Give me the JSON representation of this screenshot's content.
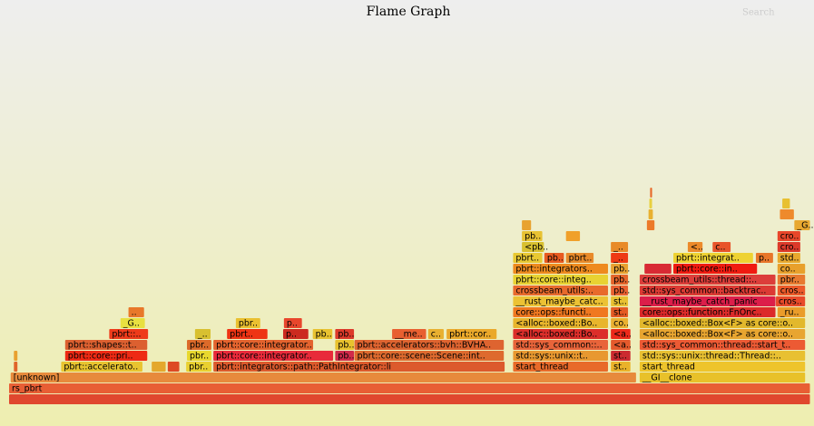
{
  "chart_data": {
    "type": "flame",
    "title": "Flame Graph",
    "search_label": "Search",
    "xlim": [
      0,
      100
    ],
    "frames": [
      {
        "name": null,
        "depth": 0,
        "start": 0,
        "width": 100,
        "color": "#e0472e"
      },
      {
        "name": "rs_pbrt",
        "depth": 1,
        "start": 0,
        "width": 100,
        "color": "#e85e34"
      },
      {
        "name": "[unknown]",
        "depth": 2,
        "start": 0.2,
        "width": 78.1,
        "color": "#e78a3c"
      },
      {
        "name": "__GI__clone",
        "depth": 2,
        "start": 78.7,
        "width": 20.7,
        "color": "#e8c12a"
      },
      {
        "name": "pbrt::accelerato..",
        "depth": 3,
        "start": 6.5,
        "width": 10.2,
        "color": "#e8c430"
      },
      {
        "name": "pbr..",
        "depth": 3,
        "start": 22.1,
        "width": 3.2,
        "color": "#e9d030"
      },
      {
        "name": "pbrt::integrators::path::PathIntegrator::li",
        "depth": 3,
        "start": 25.5,
        "width": 36.4,
        "color": "#dc5a2c"
      },
      {
        "name": "start_thread",
        "depth": 3,
        "start": 62.9,
        "width": 11.9,
        "color": "#e86a2a"
      },
      {
        "name": "st..",
        "depth": 3,
        "start": 75.1,
        "width": 2.5,
        "color": "#eab22a"
      },
      {
        "name": "start_thread",
        "depth": 3,
        "start": 78.7,
        "width": 20.7,
        "color": "#eec42c"
      },
      {
        "name": null,
        "depth": 3,
        "start": 0.6,
        "width": 0.5,
        "color": "#e0642a"
      },
      {
        "name": null,
        "depth": 3,
        "start": 17.8,
        "width": 1.8,
        "color": "#e4a82c"
      },
      {
        "name": null,
        "depth": 3,
        "start": 19.8,
        "width": 1.5,
        "color": "#dd4a24"
      },
      {
        "name": "pbrt::core::pri..",
        "depth": 4,
        "start": 7.0,
        "width": 10.3,
        "color": "#ee2a14"
      },
      {
        "name": "pbr..",
        "depth": 4,
        "start": 22.2,
        "width": 3.1,
        "color": "#e8d82e"
      },
      {
        "name": "pbrt::core::integrator..",
        "depth": 4,
        "start": 25.5,
        "width": 15.0,
        "color": "#e82a3a"
      },
      {
        "name": "pb..",
        "depth": 4,
        "start": 40.7,
        "width": 2.4,
        "color": "#d02a4a"
      },
      {
        "name": "pbrt::core::scene::Scene::int..",
        "depth": 4,
        "start": 43.1,
        "width": 18.7,
        "color": "#de6a2e"
      },
      {
        "name": "std::sys::unix::t..",
        "depth": 4,
        "start": 62.9,
        "width": 11.9,
        "color": "#e89830"
      },
      {
        "name": "st..",
        "depth": 4,
        "start": 75.1,
        "width": 2.5,
        "color": "#cc2a30"
      },
      {
        "name": "std::sys::unix::thread::Thread::..",
        "depth": 4,
        "start": 78.7,
        "width": 20.7,
        "color": "#e8c032"
      },
      {
        "name": null,
        "depth": 4,
        "start": 0.6,
        "width": 0.5,
        "color": "#e8a030"
      },
      {
        "name": "pbrt::shapes::t..",
        "depth": 5,
        "start": 7.0,
        "width": 10.3,
        "color": "#dc6030"
      },
      {
        "name": "pbr..",
        "depth": 5,
        "start": 22.2,
        "width": 3.1,
        "color": "#dc6a2a"
      },
      {
        "name": "pbrt::core::integrator..",
        "depth": 5,
        "start": 25.5,
        "width": 12.5,
        "color": "#e3632e"
      },
      {
        "name": "pb..",
        "depth": 5,
        "start": 40.7,
        "width": 2.4,
        "color": "#e8c22e"
      },
      {
        "name": "pbrt::accelerators::bvh::BVHA..",
        "depth": 5,
        "start": 43.1,
        "width": 18.7,
        "color": "#de6430"
      },
      {
        "name": "std::sys_common::..",
        "depth": 5,
        "start": 62.9,
        "width": 11.9,
        "color": "#e8643a"
      },
      {
        "name": "<a..",
        "depth": 5,
        "start": 75.1,
        "width": 2.5,
        "color": "#e45a2c"
      },
      {
        "name": "std::sys_common::thread::start_t..",
        "depth": 5,
        "start": 78.7,
        "width": 20.7,
        "color": "#ec5a34"
      },
      {
        "name": "pbrt::..",
        "depth": 6,
        "start": 12.5,
        "width": 4.9,
        "color": "#ee3a1a"
      },
      {
        "name": "_..",
        "depth": 6,
        "start": 23.2,
        "width": 2.0,
        "color": "#d8c030"
      },
      {
        "name": "pbrt..",
        "depth": 6,
        "start": 27.2,
        "width": 5.1,
        "color": "#ee3414"
      },
      {
        "name": "p..",
        "depth": 6,
        "start": 34.2,
        "width": 3.2,
        "color": "#cc2a20"
      },
      {
        "name": "pb..",
        "depth": 6,
        "start": 37.9,
        "width": 2.5,
        "color": "#e8c230"
      },
      {
        "name": "pb..",
        "depth": 6,
        "start": 40.7,
        "width": 2.4,
        "color": "#dd3a2a"
      },
      {
        "name": "__me..",
        "depth": 6,
        "start": 47.8,
        "width": 4.3,
        "color": "#e86030"
      },
      {
        "name": "c..",
        "depth": 6,
        "start": 52.3,
        "width": 2.0,
        "color": "#e8b030"
      },
      {
        "name": "pbrt::cor..",
        "depth": 6,
        "start": 54.6,
        "width": 6.3,
        "color": "#eaa82a"
      },
      {
        "name": "<alloc::boxed::Bo..",
        "depth": 6,
        "start": 62.9,
        "width": 11.9,
        "color": "#dc2e2a"
      },
      {
        "name": "<a..",
        "depth": 6,
        "start": 75.1,
        "width": 2.5,
        "color": "#ec2a1a"
      },
      {
        "name": "<alloc::boxed::Box<F> as core::o..",
        "depth": 6,
        "start": 78.7,
        "width": 20.7,
        "color": "#e8a530"
      },
      {
        "name": "_G..",
        "depth": 7,
        "start": 13.9,
        "width": 3.1,
        "color": "#e8e040"
      },
      {
        "name": "pbr..",
        "depth": 7,
        "start": 28.3,
        "width": 3.1,
        "color": "#eac030"
      },
      {
        "name": "p..",
        "depth": 7,
        "start": 34.3,
        "width": 2.3,
        "color": "#e8462c"
      },
      {
        "name": "<alloc::boxed::Bo..",
        "depth": 7,
        "start": 62.9,
        "width": 11.9,
        "color": "#e8b52c"
      },
      {
        "name": "co..",
        "depth": 7,
        "start": 75.1,
        "width": 2.2,
        "color": "#eab030"
      },
      {
        "name": "<alloc::boxed::Box<F> as core::o..",
        "depth": 7,
        "start": 78.7,
        "width": 20.7,
        "color": "#e2b82c"
      },
      {
        "name": "..",
        "depth": 8,
        "start": 14.9,
        "width": 2.0,
        "color": "#e8782a"
      },
      {
        "name": "core::ops::functi..",
        "depth": 8,
        "start": 62.9,
        "width": 11.9,
        "color": "#f07820"
      },
      {
        "name": "st..",
        "depth": 8,
        "start": 75.1,
        "width": 2.2,
        "color": "#e45a24"
      },
      {
        "name": "core::ops::function::FnOnc..",
        "depth": 8,
        "start": 78.7,
        "width": 17.0,
        "color": "#dc2a2a"
      },
      {
        "name": "_ru..",
        "depth": 8,
        "start": 95.9,
        "width": 3.5,
        "color": "#ea9c2a"
      },
      {
        "name": "__rust_maybe_catc..",
        "depth": 9,
        "start": 62.9,
        "width": 11.9,
        "color": "#ecc234"
      },
      {
        "name": "st..",
        "depth": 9,
        "start": 75.1,
        "width": 2.2,
        "color": "#e8c032"
      },
      {
        "name": "__rust_maybe_catch_panic",
        "depth": 9,
        "start": 78.7,
        "width": 17.0,
        "color": "#dc1e4a"
      },
      {
        "name": "cros..",
        "depth": 9,
        "start": 95.7,
        "width": 3.7,
        "color": "#e84a2a"
      },
      {
        "name": "crossbeam_utils:..",
        "depth": 10,
        "start": 62.9,
        "width": 11.9,
        "color": "#e86a2c"
      },
      {
        "name": "pb..",
        "depth": 10,
        "start": 75.1,
        "width": 2.2,
        "color": "#e86030"
      },
      {
        "name": "std::sys_common::backtrac..",
        "depth": 10,
        "start": 78.7,
        "width": 17.0,
        "color": "#dc3a34"
      },
      {
        "name": "cros..",
        "depth": 10,
        "start": 95.9,
        "width": 3.5,
        "color": "#ec5a2a"
      },
      {
        "name": "pbrt::core::integ..",
        "depth": 11,
        "start": 62.9,
        "width": 11.9,
        "color": "#e8d232"
      },
      {
        "name": "pb..",
        "depth": 11,
        "start": 75.1,
        "width": 2.2,
        "color": "#e4642a"
      },
      {
        "name": "crossbeam_utils::thread::..",
        "depth": 11,
        "start": 78.7,
        "width": 17.0,
        "color": "#dc3e3a"
      },
      {
        "name": "pbr..",
        "depth": 11,
        "start": 95.9,
        "width": 3.5,
        "color": "#e87a30"
      },
      {
        "name": "pbrt::integrators..",
        "depth": 12,
        "start": 62.9,
        "width": 11.9,
        "color": "#ee8a1e"
      },
      {
        "name": "pb..",
        "depth": 12,
        "start": 75.1,
        "width": 2.2,
        "color": "#e8a030"
      },
      {
        "name": null,
        "depth": 12,
        "start": 79.3,
        "width": 3.4,
        "color": "#d82a34"
      },
      {
        "name": "pbrt::core::in..",
        "depth": 12,
        "start": 82.9,
        "width": 10.5,
        "color": "#f01a10"
      },
      {
        "name": "co..",
        "depth": 12,
        "start": 95.9,
        "width": 3.5,
        "color": "#e8a02c"
      },
      {
        "name": "pbrt..",
        "depth": 13,
        "start": 62.9,
        "width": 3.7,
        "color": "#e8c832"
      },
      {
        "name": "pb..",
        "depth": 13,
        "start": 66.8,
        "width": 2.5,
        "color": "#e85a20"
      },
      {
        "name": "pbrt..",
        "depth": 13,
        "start": 69.5,
        "width": 3.5,
        "color": "#e88a2a"
      },
      {
        "name": "_..",
        "depth": 13,
        "start": 75.1,
        "width": 2.2,
        "color": "#ee3a14"
      },
      {
        "name": "pbrt::integrat..",
        "depth": 13,
        "start": 82.9,
        "width": 10.0,
        "color": "#eed232"
      },
      {
        "name": "p..",
        "depth": 13,
        "start": 93.2,
        "width": 2.2,
        "color": "#e8762a"
      },
      {
        "name": "std..",
        "depth": 13,
        "start": 95.9,
        "width": 2.9,
        "color": "#e8a82e"
      },
      {
        "name": "<pb..",
        "depth": 14,
        "start": 64.0,
        "width": 2.8,
        "color": "#d8c030"
      },
      {
        "name": "_..",
        "depth": 14,
        "start": 75.1,
        "width": 2.2,
        "color": "#e88a28"
      },
      {
        "name": "<..",
        "depth": 14,
        "start": 84.7,
        "width": 1.9,
        "color": "#ec8a2a"
      },
      {
        "name": "c..",
        "depth": 14,
        "start": 87.8,
        "width": 2.3,
        "color": "#e8542a"
      },
      {
        "name": "cro..",
        "depth": 14,
        "start": 95.9,
        "width": 2.9,
        "color": "#dc3a2a"
      },
      {
        "name": "pb..",
        "depth": 15,
        "start": 64.0,
        "width": 2.6,
        "color": "#e8c232"
      },
      {
        "name": "cro..",
        "depth": 15,
        "start": 95.9,
        "width": 2.9,
        "color": "#e8462a"
      },
      {
        "name": "_G..",
        "depth": 16,
        "start": 98.0,
        "width": 2.0,
        "color": "#e8a830"
      },
      {
        "name": null,
        "depth": 16,
        "start": 64.0,
        "width": 1.2,
        "color": "#e8a230"
      },
      {
        "name": null,
        "depth": 15,
        "start": 69.5,
        "width": 1.8,
        "color": "#f0a02a"
      },
      {
        "name": null,
        "depth": 16,
        "start": 79.6,
        "width": 1.0,
        "color": "#ec7a2a"
      },
      {
        "name": null,
        "depth": 17,
        "start": 79.8,
        "width": 0.6,
        "color": "#e8b030"
      },
      {
        "name": null,
        "depth": 18,
        "start": 79.9,
        "width": 0.4,
        "color": "#e8d040"
      },
      {
        "name": null,
        "depth": 19,
        "start": 80.0,
        "width": 0.3,
        "color": "#e86a2a"
      },
      {
        "name": null,
        "depth": 17,
        "start": 96.2,
        "width": 1.8,
        "color": "#ee8a2c"
      },
      {
        "name": null,
        "depth": 18,
        "start": 96.5,
        "width": 1.0,
        "color": "#e8c030"
      }
    ]
  }
}
